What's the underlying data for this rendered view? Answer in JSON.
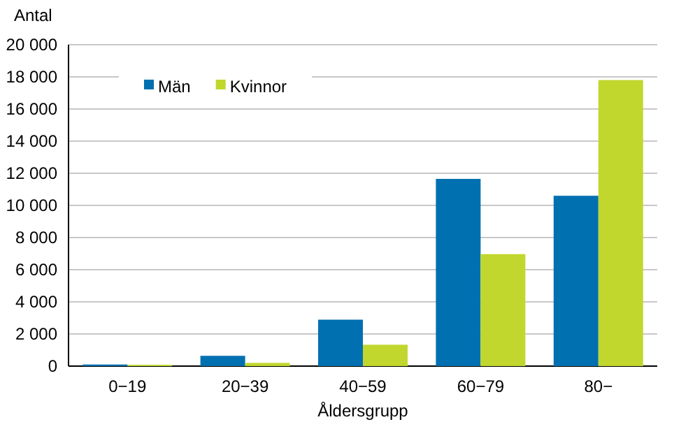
{
  "chart_data": {
    "type": "bar",
    "ylabel": "Antal",
    "xlabel": "Åldersgrupp",
    "categories": [
      "0−19",
      "20−39",
      "40−59",
      "60−79",
      "80−"
    ],
    "series": [
      {
        "name": "Män",
        "color": "#0070b0",
        "values": [
          100,
          640,
          2890,
          11650,
          10600
        ]
      },
      {
        "name": "Kvinnor",
        "color": "#c1d72e",
        "values": [
          80,
          200,
          1330,
          6970,
          17800
        ]
      }
    ],
    "ylim": [
      0,
      20000
    ],
    "yticks": [
      0,
      {
        "value": 2000,
        "label": "2 000"
      },
      {
        "value": 4000,
        "label": "4 000"
      },
      {
        "value": 6000,
        "label": "6 000"
      },
      {
        "value": 8000,
        "label": "8 000"
      },
      {
        "value": 10000,
        "label": "10 000"
      },
      {
        "value": 12000,
        "label": "12 000"
      },
      {
        "value": 14000,
        "label": "14 000"
      },
      {
        "value": 16000,
        "label": "16 000"
      },
      {
        "value": 18000,
        "label": "18 000"
      },
      {
        "value": 20000,
        "label": "20 000"
      }
    ],
    "grid": "y",
    "legend": "top left"
  }
}
